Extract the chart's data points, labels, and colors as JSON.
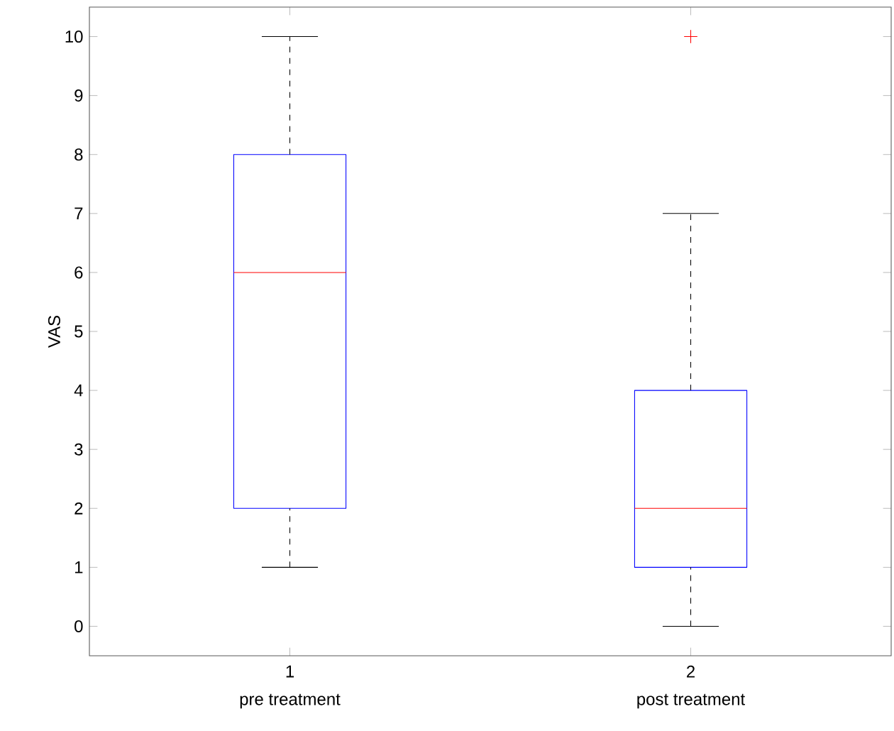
{
  "chart_data": {
    "type": "box",
    "ylabel": "VAS",
    "categories": [
      "1",
      "2"
    ],
    "annotations": [
      "pre treatment",
      "post treatment"
    ],
    "boxes": [
      {
        "low": 1,
        "q1": 2,
        "median": 6,
        "q3": 8,
        "high": 10
      },
      {
        "low": 0,
        "q1": 1,
        "median": 2,
        "q3": 4,
        "high": 7,
        "outliers": [
          10
        ]
      }
    ],
    "color": "#0000ff",
    "ylim": [
      -0.5,
      10.5
    ],
    "yticks": [
      0,
      1,
      2,
      3,
      4,
      5,
      6,
      7,
      8,
      9,
      10
    ],
    "grid": false
  }
}
